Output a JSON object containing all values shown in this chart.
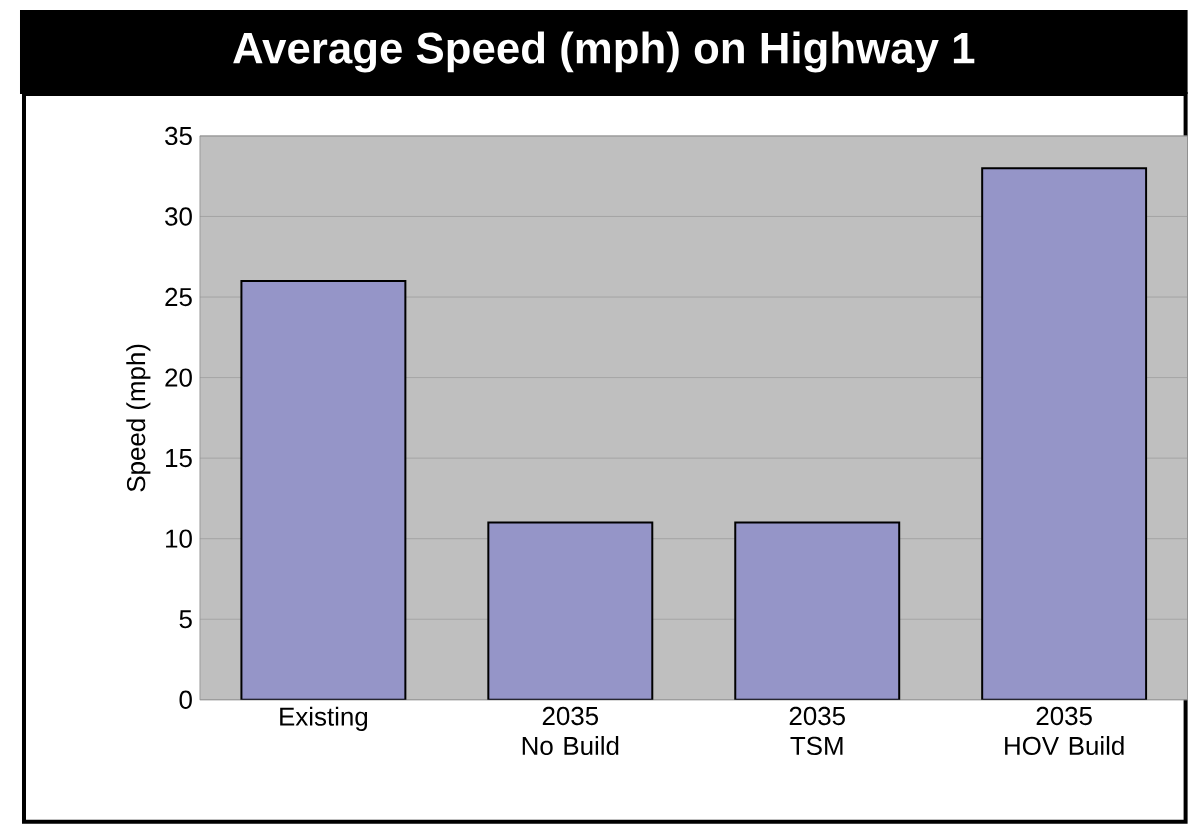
{
  "chart_data": {
    "type": "bar",
    "title": "Average Speed (mph) on Highway 1",
    "ylabel": "Speed (mph)",
    "categories": [
      "Existing",
      "2035\nNo Build",
      "2035\nTSM",
      "2035\nHOV Build"
    ],
    "values": [
      26,
      11,
      11,
      33
    ],
    "color": "#9595c8",
    "ylim": [
      0,
      35
    ],
    "yticks": [
      0,
      5,
      10,
      15,
      20,
      25,
      30,
      35
    ],
    "grid": "y"
  }
}
